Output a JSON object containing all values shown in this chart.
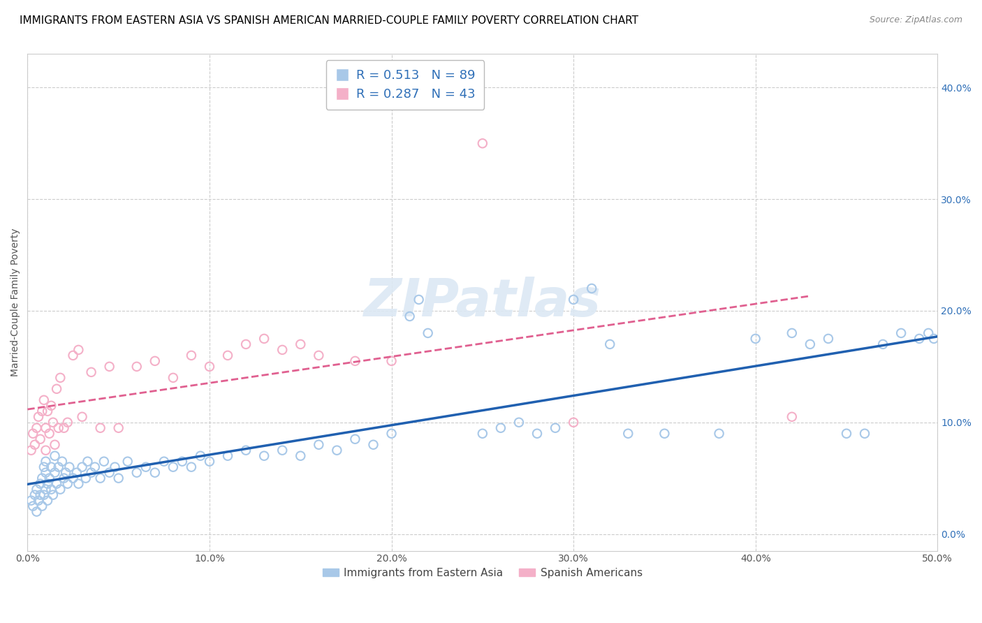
{
  "title": "IMMIGRANTS FROM EASTERN ASIA VS SPANISH AMERICAN MARRIED-COUPLE FAMILY POVERTY CORRELATION CHART",
  "source": "Source: ZipAtlas.com",
  "ylabel": "Married-Couple Family Poverty",
  "legend_label1": "Immigrants from Eastern Asia",
  "legend_label2": "Spanish Americans",
  "R1": 0.513,
  "N1": 89,
  "R2": 0.287,
  "N2": 43,
  "xlim": [
    0.0,
    0.5
  ],
  "ylim": [
    -0.015,
    0.43
  ],
  "yticks": [
    0.0,
    0.1,
    0.2,
    0.3,
    0.4
  ],
  "xticks": [
    0.0,
    0.1,
    0.2,
    0.3,
    0.4,
    0.5
  ],
  "xtick_labels": [
    "0.0%",
    "10.0%",
    "20.0%",
    "30.0%",
    "40.0%",
    "50.0%"
  ],
  "ytick_labels": [
    "0.0%",
    "10.0%",
    "20.0%",
    "30.0%",
    "40.0%"
  ],
  "color_blue": "#a8c8e8",
  "color_pink": "#f4b0c8",
  "line_blue": "#2060b0",
  "line_pink": "#e06090",
  "watermark": "ZIPatlas",
  "title_fontsize": 11,
  "axis_label_fontsize": 10,
  "tick_fontsize": 10,
  "blue_x": [
    0.002,
    0.003,
    0.004,
    0.005,
    0.005,
    0.006,
    0.007,
    0.007,
    0.008,
    0.008,
    0.009,
    0.009,
    0.01,
    0.01,
    0.01,
    0.011,
    0.011,
    0.012,
    0.013,
    0.013,
    0.014,
    0.015,
    0.015,
    0.016,
    0.017,
    0.018,
    0.019,
    0.02,
    0.021,
    0.022,
    0.023,
    0.025,
    0.027,
    0.028,
    0.03,
    0.032,
    0.033,
    0.035,
    0.037,
    0.04,
    0.042,
    0.045,
    0.048,
    0.05,
    0.055,
    0.06,
    0.065,
    0.07,
    0.075,
    0.08,
    0.085,
    0.09,
    0.095,
    0.1,
    0.11,
    0.12,
    0.13,
    0.14,
    0.15,
    0.16,
    0.17,
    0.18,
    0.19,
    0.2,
    0.21,
    0.215,
    0.22,
    0.25,
    0.26,
    0.27,
    0.28,
    0.29,
    0.3,
    0.31,
    0.32,
    0.33,
    0.35,
    0.38,
    0.4,
    0.42,
    0.43,
    0.44,
    0.45,
    0.46,
    0.47,
    0.48,
    0.49,
    0.495,
    0.498
  ],
  "blue_y": [
    0.03,
    0.025,
    0.035,
    0.02,
    0.04,
    0.03,
    0.045,
    0.035,
    0.05,
    0.025,
    0.06,
    0.035,
    0.055,
    0.04,
    0.065,
    0.045,
    0.03,
    0.05,
    0.04,
    0.06,
    0.035,
    0.055,
    0.07,
    0.045,
    0.06,
    0.04,
    0.065,
    0.05,
    0.055,
    0.045,
    0.06,
    0.05,
    0.055,
    0.045,
    0.06,
    0.05,
    0.065,
    0.055,
    0.06,
    0.05,
    0.065,
    0.055,
    0.06,
    0.05,
    0.065,
    0.055,
    0.06,
    0.055,
    0.065,
    0.06,
    0.065,
    0.06,
    0.07,
    0.065,
    0.07,
    0.075,
    0.07,
    0.075,
    0.07,
    0.08,
    0.075,
    0.085,
    0.08,
    0.09,
    0.195,
    0.21,
    0.18,
    0.09,
    0.095,
    0.1,
    0.09,
    0.095,
    0.21,
    0.22,
    0.17,
    0.09,
    0.09,
    0.09,
    0.175,
    0.18,
    0.17,
    0.175,
    0.09,
    0.09,
    0.17,
    0.18,
    0.175,
    0.18,
    0.175
  ],
  "pink_x": [
    0.002,
    0.003,
    0.004,
    0.005,
    0.006,
    0.007,
    0.008,
    0.009,
    0.01,
    0.01,
    0.011,
    0.012,
    0.013,
    0.014,
    0.015,
    0.016,
    0.017,
    0.018,
    0.02,
    0.022,
    0.025,
    0.028,
    0.03,
    0.035,
    0.04,
    0.045,
    0.05,
    0.06,
    0.07,
    0.08,
    0.09,
    0.1,
    0.11,
    0.12,
    0.13,
    0.14,
    0.15,
    0.16,
    0.18,
    0.2,
    0.25,
    0.3,
    0.42
  ],
  "pink_y": [
    0.075,
    0.09,
    0.08,
    0.095,
    0.105,
    0.085,
    0.11,
    0.12,
    0.075,
    0.095,
    0.11,
    0.09,
    0.115,
    0.1,
    0.08,
    0.13,
    0.095,
    0.14,
    0.095,
    0.1,
    0.16,
    0.165,
    0.105,
    0.145,
    0.095,
    0.15,
    0.095,
    0.15,
    0.155,
    0.14,
    0.16,
    0.15,
    0.16,
    0.17,
    0.175,
    0.165,
    0.17,
    0.16,
    0.155,
    0.155,
    0.35,
    0.1,
    0.105
  ]
}
